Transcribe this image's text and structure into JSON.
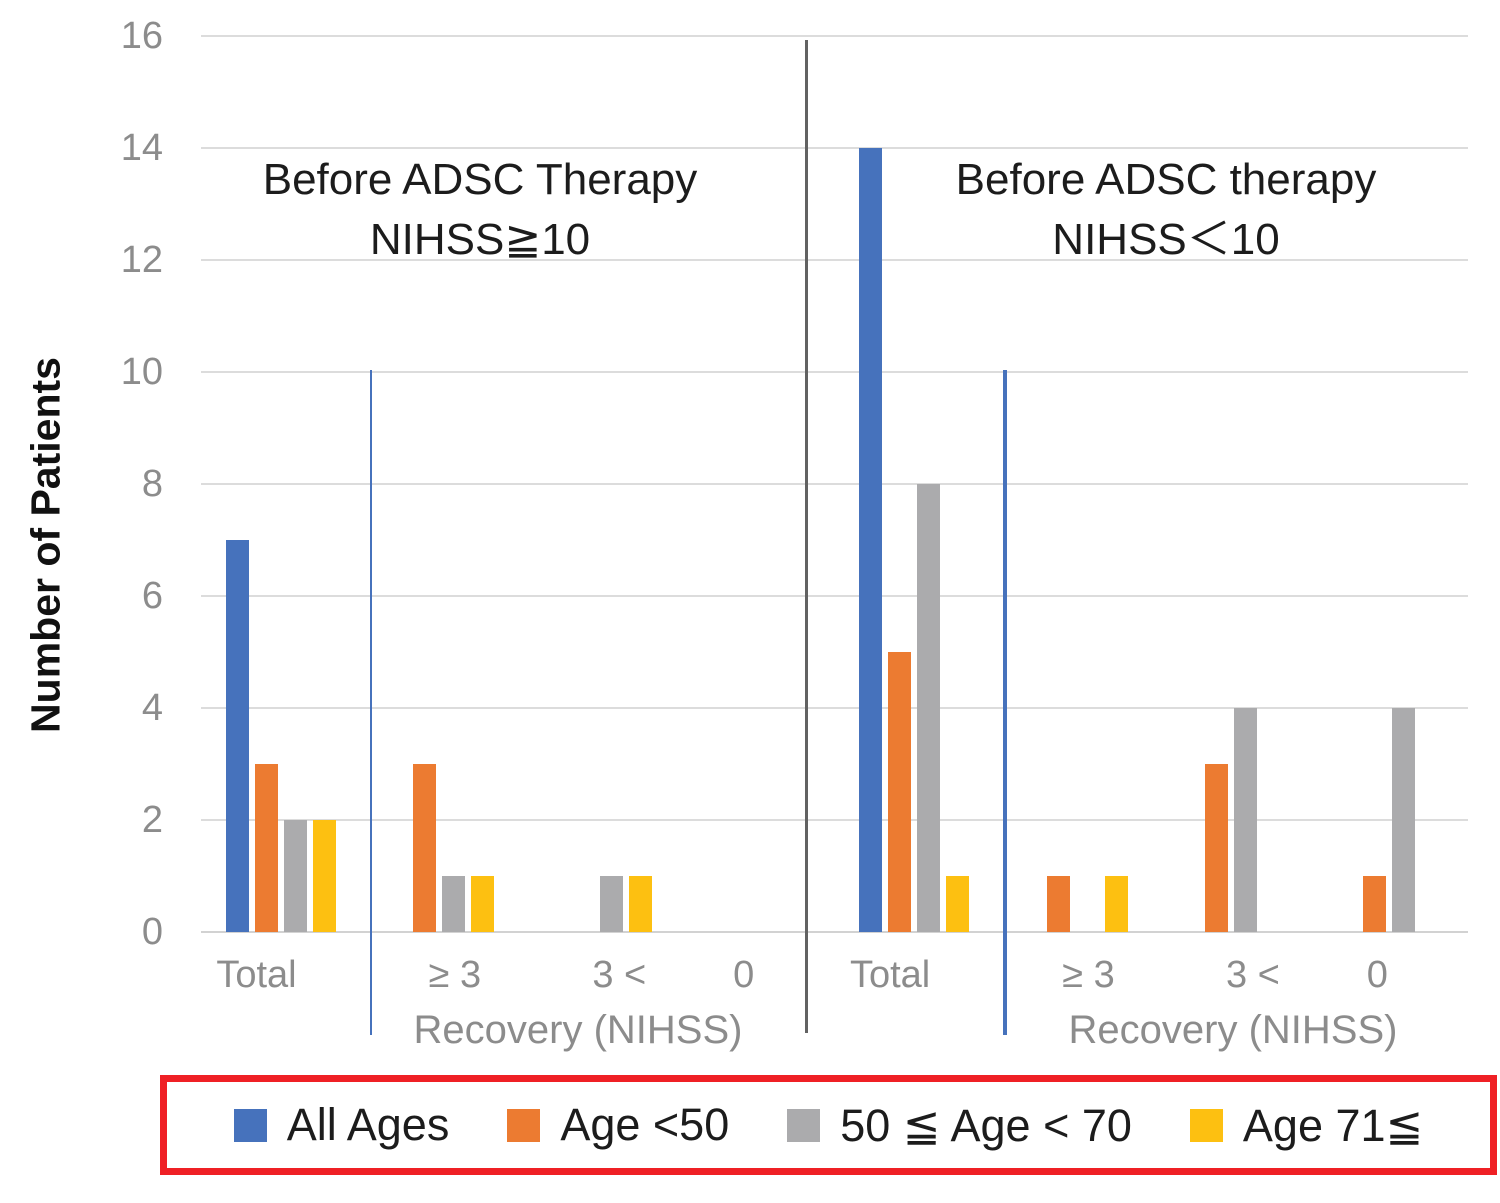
{
  "chart_data": {
    "type": "bar",
    "ylabel": "Number of Patients",
    "ylim": [
      0,
      16
    ],
    "yticks": [
      0,
      2,
      4,
      6,
      8,
      10,
      12,
      14,
      16
    ],
    "grid": true,
    "legend_position": "bottom",
    "categories": [
      "Total",
      "≥ 3",
      "3 <",
      "0",
      "Total",
      "≥ 3",
      "3 <",
      "0"
    ],
    "series": [
      {
        "name": "All Ages",
        "color": "#4672BC",
        "values": [
          7,
          0,
          0,
          0,
          14,
          0,
          0,
          0
        ]
      },
      {
        "name": "Age <50",
        "color": "#EC7B31",
        "values": [
          3,
          3,
          0,
          0,
          5,
          1,
          3,
          1
        ]
      },
      {
        "name": "50 ≦ Age < 70",
        "color": "#ABABAD",
        "values": [
          2,
          1,
          1,
          0,
          8,
          0,
          4,
          4
        ]
      },
      {
        "name": "Age 71≦",
        "color": "#FDC011",
        "values": [
          2,
          1,
          1,
          0,
          1,
          1,
          0,
          0
        ]
      }
    ],
    "panels": [
      {
        "title": [
          "Before ADSC Therapy",
          "NIHSS≧10"
        ],
        "xlabel": "Recovery (NIHSS)"
      },
      {
        "title": [
          "Before ADSC therapy",
          "NIHSS＜10"
        ],
        "xlabel": "Recovery (NIHSS)"
      }
    ],
    "legend": {
      "border_color": "#EF2025"
    },
    "dividers": [
      {
        "name": "panel-divider",
        "color": "#626262"
      },
      {
        "name": "total-separator-left",
        "color": "#4672BC"
      },
      {
        "name": "total-separator-right",
        "color": "#4672BC"
      }
    ]
  }
}
